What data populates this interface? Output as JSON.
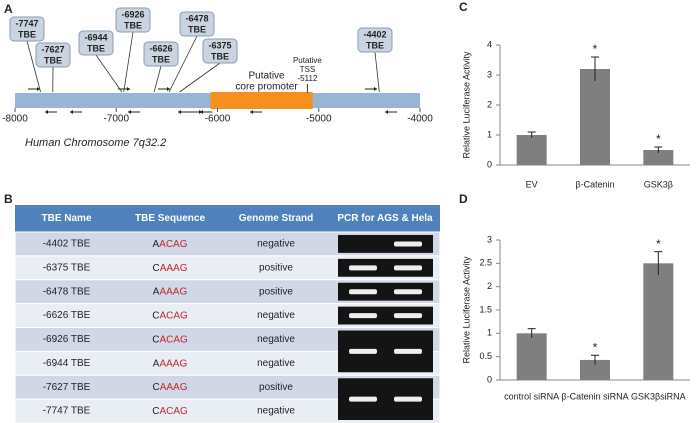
{
  "panels": {
    "a": "A",
    "b": "B",
    "c": "C",
    "d": "D"
  },
  "chromosome": {
    "name": "Human Chromosome 7q32.2",
    "xlim": [
      -8000,
      -4000
    ],
    "xticks": [
      -8000,
      -7000,
      -6000,
      -5000,
      -4000
    ],
    "core_promoter": {
      "label_lines": [
        "Putative",
        "core promoter"
      ],
      "range": [
        -6070,
        -5060
      ]
    },
    "tss": {
      "label_lines": [
        "Putative",
        "TSS"
      ],
      "value": -5112
    },
    "tbe_sites": [
      {
        "value": -7747,
        "label": "TBE"
      },
      {
        "value": -7627,
        "label": "TBE"
      },
      {
        "value": -6944,
        "label": "TBE"
      },
      {
        "value": -6926,
        "label": "TBE"
      },
      {
        "value": -6626,
        "label": "TBE"
      },
      {
        "value": -6478,
        "label": "TBE"
      },
      {
        "value": -6375,
        "label": "TBE"
      },
      {
        "value": -4402,
        "label": "TBE"
      }
    ]
  },
  "table": {
    "header": [
      "TBE Name",
      "TBE Sequence",
      "Genome Strand",
      "PCR for AGS & Hela"
    ],
    "rows": [
      [
        "-4402 TBE",
        {
          "lead": "A",
          "core": "ACAG"
        },
        "negative"
      ],
      [
        "-6375 TBE",
        {
          "lead": "C",
          "core": "AAAG"
        },
        "positive"
      ],
      [
        "-6478 TBE",
        {
          "lead": "A",
          "core": "AAAG"
        },
        "positive"
      ],
      [
        "-6626 TBE",
        {
          "lead": "C",
          "core": "ACAG"
        },
        "negative"
      ],
      [
        "-6926 TBE",
        {
          "lead": "C",
          "core": "ACAG"
        },
        "negative"
      ],
      [
        "-6944 TBE",
        {
          "lead": "A",
          "core": "AAAG"
        },
        "negative"
      ],
      [
        "-7627 TBE",
        {
          "lead": "C",
          "core": "AAAG"
        },
        "positive"
      ],
      [
        "-7747 TBE",
        {
          "lead": "C",
          "core": "ACAG"
        },
        "negative"
      ]
    ]
  },
  "chart_data": [
    {
      "type": "bar",
      "ylabel": "Relative  Luciferase Activity",
      "categories": [
        "EV",
        "β-Catenin",
        "GSK3β"
      ],
      "values": [
        1.0,
        3.2,
        0.5
      ],
      "errors": [
        0.1,
        0.4,
        0.1
      ],
      "significance": [
        null,
        "*",
        "*"
      ],
      "ylim": [
        0,
        4
      ],
      "yticks": [
        0,
        1,
        2,
        3,
        4
      ],
      "color": "#7f7f7f"
    },
    {
      "type": "bar",
      "ylabel": "Relative  Luciferase Activity",
      "categories": [
        "control siRNA",
        "β-Catenin siRNA",
        "GSK3βsiRNA"
      ],
      "values": [
        1.0,
        0.43,
        2.5
      ],
      "errors": [
        0.1,
        0.1,
        0.25
      ],
      "significance": [
        null,
        "*",
        "*"
      ],
      "ylim": [
        0,
        3
      ],
      "yticks": [
        0,
        0.5,
        1,
        1.5,
        2,
        2.5,
        3
      ],
      "color": "#7f7f7f"
    }
  ]
}
